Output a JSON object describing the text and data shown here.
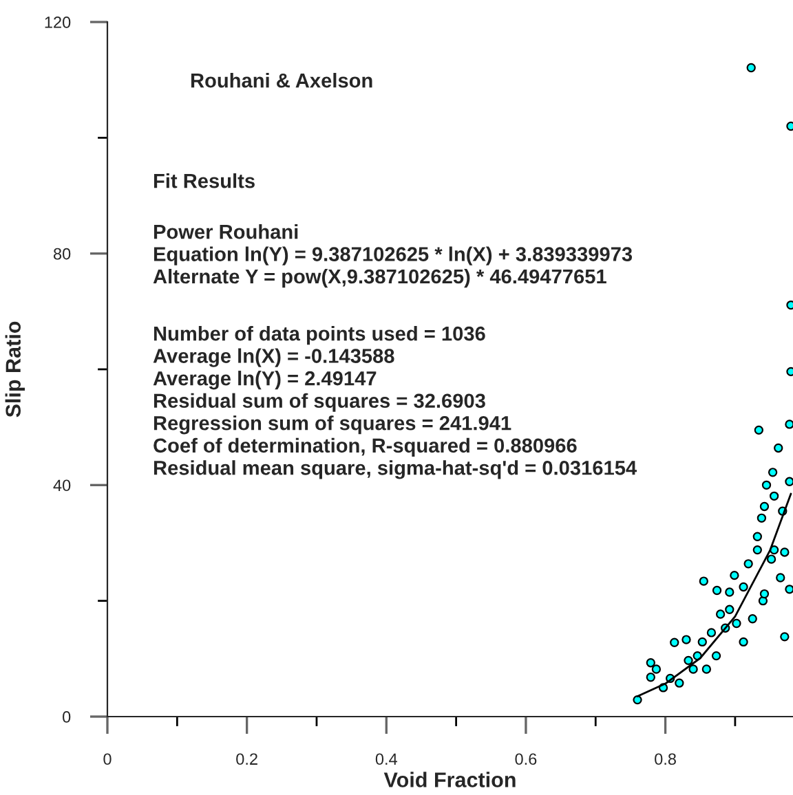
{
  "chart_data": {
    "type": "scatter",
    "xlabel": "Void Fraction",
    "ylabel": "Slip Ratio",
    "annotations": [
      "Rouhani & Axelson",
      "Fit Results",
      "Power Rouhani\nEquation ln(Y) = 9.387102625 * ln(X) + 3.839339973\nAlternate Y = pow(X,9.387102625) * 46.49477651",
      "Number of data points used = 1036\nAverage ln(X) = -0.143588\nAverage ln(Y) = 2.49147\nResidual sum of squares = 32.6903\nRegression sum of squares = 241.941\nCoef of determination, R-squared = 0.880966\nResidual mean square, sigma-hat-sq'd = 0.0316154"
    ],
    "series": [
      {
        "color": "#00ffff",
        "marker": "circle",
        "x": [
          0.76,
          0.855,
          0.874,
          0.892,
          0.934,
          0.978,
          0.962,
          0.954,
          0.945,
          0.956,
          0.971,
          0.978,
          0.971,
          0.956,
          0.94,
          0.779,
          0.779,
          0.797,
          0.813,
          0.83,
          0.846,
          0.82,
          0.859,
          0.873,
          0.879,
          0.902,
          0.912,
          0.899,
          0.919,
          0.925,
          0.932,
          0.938,
          0.942,
          0.965,
          0.968,
          0.978,
          0.942,
          0.932,
          0.952,
          0.912,
          0.892,
          0.886,
          0.866,
          0.853,
          0.84,
          0.807,
          0.787,
          0.833,
          0.923,
          0.98,
          0.98,
          0.98
        ],
        "values": [
          2.9,
          23.4,
          21.8,
          21.5,
          49.5,
          50.5,
          46.4,
          42.2,
          40.0,
          38.1,
          13.8,
          22.0,
          28.4,
          28.8,
          20.0,
          9.3,
          6.8,
          5.0,
          12.8,
          13.3,
          10.5,
          5.8,
          8.2,
          10.5,
          17.7,
          16.1,
          12.9,
          24.4,
          26.4,
          16.9,
          31.1,
          34.3,
          21.2,
          24.0,
          35.5,
          40.6,
          36.3,
          28.8,
          27.2,
          22.4,
          18.5,
          15.3,
          14.5,
          12.9,
          8.2,
          6.6,
          8.2,
          9.7,
          112.1,
          102.0,
          71.1,
          59.6
        ]
      },
      {
        "type": "line",
        "color": "#000000",
        "marker": "none",
        "line_style": "solid",
        "x": [
          0.76,
          0.8,
          0.85,
          0.9,
          0.95,
          0.98
        ],
        "values": [
          3.5,
          5.7,
          10.1,
          17.3,
          28.7,
          38.5
        ]
      }
    ],
    "xlim": [
      0,
      0.983
    ],
    "ylim": [
      0,
      120
    ],
    "xticks": [
      0,
      {
        "value": 0.1,
        "label": null
      },
      0.2,
      {
        "value": 0.3,
        "label": null
      },
      0.4,
      {
        "value": 0.5,
        "label": null
      },
      0.6,
      {
        "value": 0.7,
        "label": null
      },
      0.8,
      {
        "value": 0.9,
        "label": null
      }
    ],
    "yticks": [
      0,
      {
        "value": 20,
        "label": null
      },
      40,
      {
        "value": 60,
        "label": null
      },
      80,
      {
        "value": 100,
        "label": null
      },
      120
    ],
    "grid": false,
    "legend": false
  }
}
